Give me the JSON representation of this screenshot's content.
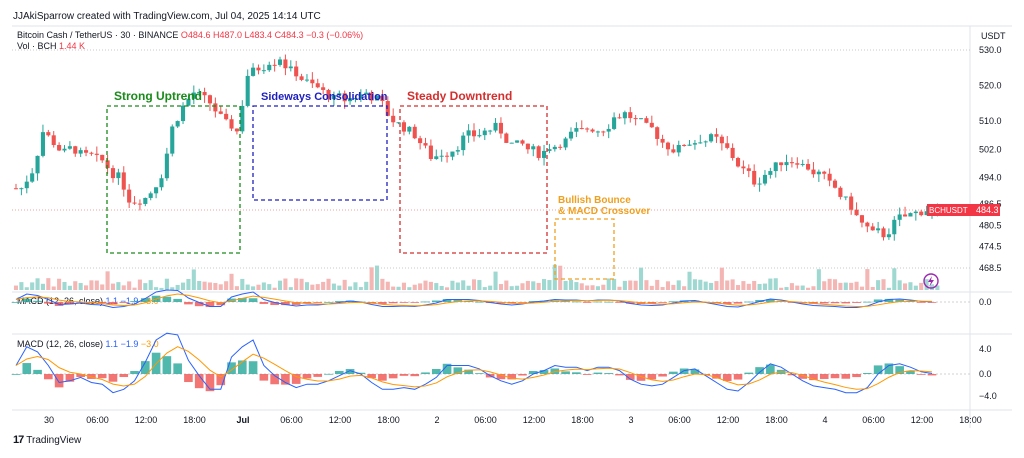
{
  "header": {
    "credit": "JJAkiSparrow created with TradingView.com, Jul 04, 2025 14:14 UTC"
  },
  "symbol": {
    "name": "Bitcoin Cash / TetherUS · 30 · BINANCE",
    "open": "O484.6",
    "high": "H487.0",
    "low": "L483.4",
    "close": "C484.3",
    "change": "−0.3 (−0.06%)"
  },
  "volume": {
    "label": "Vol · BCH",
    "value": "1.44 K"
  },
  "price_axis": {
    "currency": "USDT",
    "last_tag": "BCHUSDT",
    "last_value": "484.3"
  },
  "macd1": {
    "label": "MACD (12, 26, close)",
    "v1": "1.1",
    "v2": "−1.9",
    "v3": "−3.0"
  },
  "macd2": {
    "label": "MACD (12, 26, close)",
    "v1": "1.1",
    "v2": "−1.9",
    "v3": "−3.0"
  },
  "footer": {
    "brand": "TradingView"
  },
  "colors": {
    "up": "#26a69a",
    "down": "#ef5350",
    "macd": "#2962ff",
    "signal": "#ff9800",
    "green_box": "#1a8a1a",
    "blue_box": "#1f1fbf",
    "red_box": "#d32f2f",
    "orange_box": "#f0a020"
  },
  "chart_data": {
    "type": "candlestick",
    "price_ticks": [
      "530.0",
      "520.0",
      "510.0",
      "502.0",
      "494.0",
      "486.5",
      "480.5",
      "474.5",
      "468.5"
    ],
    "macd_pane1_ticks": [
      "0.0"
    ],
    "macd_pane2_ticks": [
      "4.0",
      "0.0",
      "−4.0"
    ],
    "time_ticks": [
      "30",
      "06:00",
      "12:00",
      "18:00",
      "Jul",
      "06:00",
      "12:00",
      "18:00",
      "2",
      "06:00",
      "12:00",
      "18:00",
      "3",
      "06:00",
      "12:00",
      "18:00",
      "4",
      "06:00",
      "12:00",
      "18:00"
    ],
    "annotations": [
      {
        "text": "Strong Uptrend",
        "color": "green"
      },
      {
        "text": "Sideways Consolidation",
        "color": "blue"
      },
      {
        "text": "Steady Downtrend",
        "color": "red"
      },
      {
        "text": "Bullish Bounce\n& MACD Crossover",
        "color": "orange"
      }
    ],
    "close_path": [
      491,
      496,
      507,
      504,
      501,
      502,
      500,
      499,
      497,
      494,
      488,
      488,
      490,
      495,
      508,
      514,
      518,
      516,
      513,
      509,
      507,
      523,
      525,
      527,
      528,
      524,
      522,
      520,
      518,
      516,
      516,
      517,
      518,
      516,
      512,
      509,
      507,
      504,
      500,
      501,
      502,
      505,
      506,
      507,
      508,
      505,
      503,
      502,
      501,
      503,
      504,
      506,
      507,
      508,
      508,
      511,
      512,
      510,
      508,
      506,
      503,
      502,
      504,
      505,
      505,
      503,
      500,
      496,
      493,
      495,
      497,
      499,
      499,
      497,
      495,
      492,
      489,
      486,
      481,
      478,
      478,
      481,
      483,
      484,
      485,
      484.3
    ],
    "last_close": 484.3
  }
}
